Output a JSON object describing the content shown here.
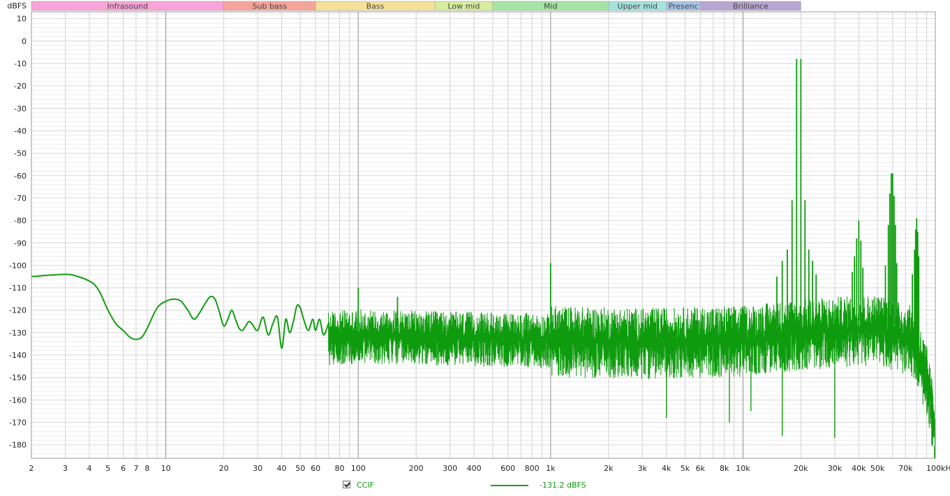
{
  "chart_data": {
    "type": "line",
    "ylabel": "dBFS",
    "x_unit": "Hz",
    "x_scale": "log",
    "xlim": [
      2,
      100000
    ],
    "ylim": [
      -186,
      13
    ],
    "grid": true,
    "y_ticks": [
      10,
      0,
      -10,
      -20,
      -30,
      -40,
      -50,
      -60,
      -70,
      -80,
      -90,
      -100,
      -110,
      -120,
      -130,
      -140,
      -150,
      -160,
      -170,
      -180
    ],
    "x_ticks": [
      {
        "value": 2,
        "label": "2"
      },
      {
        "value": 3,
        "label": "3"
      },
      {
        "value": 4,
        "label": "4"
      },
      {
        "value": 5,
        "label": "5"
      },
      {
        "value": 6,
        "label": "6"
      },
      {
        "value": 7,
        "label": "7"
      },
      {
        "value": 8,
        "label": "8"
      },
      {
        "value": 10,
        "label": "10"
      },
      {
        "value": 20,
        "label": "20"
      },
      {
        "value": 30,
        "label": "30"
      },
      {
        "value": 40,
        "label": "40"
      },
      {
        "value": 50,
        "label": "50"
      },
      {
        "value": 60,
        "label": "60"
      },
      {
        "value": 80,
        "label": "80"
      },
      {
        "value": 100,
        "label": "100"
      },
      {
        "value": 200,
        "label": "200"
      },
      {
        "value": 300,
        "label": "300"
      },
      {
        "value": 400,
        "label": "400"
      },
      {
        "value": 600,
        "label": "600"
      },
      {
        "value": 800,
        "label": "800"
      },
      {
        "value": 1000,
        "label": "1k"
      },
      {
        "value": 2000,
        "label": "2k"
      },
      {
        "value": 3000,
        "label": "3k"
      },
      {
        "value": 4000,
        "label": "4k"
      },
      {
        "value": 5000,
        "label": "5k"
      },
      {
        "value": 6000,
        "label": "6k"
      },
      {
        "value": 8000,
        "label": "8k"
      },
      {
        "value": 10000,
        "label": "10k"
      },
      {
        "value": 20000,
        "label": "20k"
      },
      {
        "value": 30000,
        "label": "30k"
      },
      {
        "value": 40000,
        "label": "40k"
      },
      {
        "value": 50000,
        "label": "50k"
      },
      {
        "value": 70000,
        "label": "70k"
      },
      {
        "value": 100000,
        "label": "100kHz"
      }
    ],
    "bands": [
      {
        "label": "Infrasound",
        "from": 2,
        "to": 20,
        "color": "#f7a4d8"
      },
      {
        "label": "Sub bass",
        "from": 20,
        "to": 60,
        "color": "#f6a49a"
      },
      {
        "label": "Bass",
        "from": 60,
        "to": 250,
        "color": "#f6e09a"
      },
      {
        "label": "Low mid",
        "from": 250,
        "to": 500,
        "color": "#d7ec9c"
      },
      {
        "label": "Mid",
        "from": 500,
        "to": 2000,
        "color": "#a6e4a6"
      },
      {
        "label": "Upper mid",
        "from": 2000,
        "to": 4000,
        "color": "#a4e4de"
      },
      {
        "label": "Presenc",
        "from": 4000,
        "to": 6000,
        "color": "#a6c4e8"
      },
      {
        "label": "Brilliance",
        "from": 6000,
        "to": 20000,
        "color": "#b8a6d2"
      }
    ],
    "series": [
      {
        "name": "CCIF",
        "color": "#0e9c0e",
        "readout": "-131.2 dBFS",
        "x": [
          2,
          3,
          3.5,
          4,
          4.3,
          4.6,
          5,
          5.5,
          6,
          6.5,
          7,
          7.5,
          8,
          9,
          10,
          11,
          12,
          13,
          14,
          15,
          16,
          17,
          18,
          19,
          20,
          21,
          22,
          23,
          24,
          25,
          26,
          27,
          28,
          30,
          32,
          34,
          36,
          38,
          40,
          42,
          44,
          46,
          48,
          50,
          52,
          55,
          58,
          60,
          63,
          66,
          70
        ],
        "values": [
          -105,
          -104,
          -105,
          -107,
          -109,
          -113,
          -120,
          -126,
          -129,
          -132,
          -133,
          -132,
          -128,
          -119,
          -116,
          -115,
          -116,
          -120,
          -124,
          -121,
          -117,
          -114,
          -115,
          -121,
          -127,
          -124,
          -120,
          -124,
          -128,
          -129,
          -127,
          -125,
          -126,
          -129,
          -123,
          -131,
          -126,
          -123,
          -137,
          -124,
          -130,
          -125,
          -118,
          -119,
          -124,
          -129,
          -124,
          -129,
          -124,
          -131,
          -126
        ]
      }
    ],
    "noise_floor": [
      {
        "x": 70,
        "y": -132
      },
      {
        "x": 100,
        "y": -131
      },
      {
        "x": 300,
        "y": -132
      },
      {
        "x": 1000,
        "y": -133
      },
      {
        "x": 3000,
        "y": -134
      },
      {
        "x": 10000,
        "y": -133
      },
      {
        "x": 20000,
        "y": -130
      },
      {
        "x": 50000,
        "y": -128
      },
      {
        "x": 75000,
        "y": -133
      },
      {
        "x": 90000,
        "y": -150
      },
      {
        "x": 100000,
        "y": -175
      }
    ],
    "peaks": [
      {
        "x": 100,
        "y": -110
      },
      {
        "x": 160,
        "y": -114
      },
      {
        "x": 1000,
        "y": -99
      },
      {
        "x": 15000,
        "y": -105
      },
      {
        "x": 16000,
        "y": -98
      },
      {
        "x": 17000,
        "y": -93
      },
      {
        "x": 18000,
        "y": -71
      },
      {
        "x": 19000,
        "y": -8
      },
      {
        "x": 20000,
        "y": -8
      },
      {
        "x": 21000,
        "y": -71
      },
      {
        "x": 22000,
        "y": -93
      },
      {
        "x": 23000,
        "y": -98
      },
      {
        "x": 24000,
        "y": -104
      },
      {
        "x": 37000,
        "y": -103
      },
      {
        "x": 38000,
        "y": -96
      },
      {
        "x": 39000,
        "y": -88
      },
      {
        "x": 40000,
        "y": -80
      },
      {
        "x": 41000,
        "y": -89
      },
      {
        "x": 42000,
        "y": -101
      },
      {
        "x": 55000,
        "y": -100
      },
      {
        "x": 57000,
        "y": -82
      },
      {
        "x": 58000,
        "y": -68
      },
      {
        "x": 59000,
        "y": -59
      },
      {
        "x": 60000,
        "y": -59
      },
      {
        "x": 61000,
        "y": -69
      },
      {
        "x": 62000,
        "y": -82
      },
      {
        "x": 63000,
        "y": -99
      },
      {
        "x": 76000,
        "y": -104
      },
      {
        "x": 78000,
        "y": -93
      },
      {
        "x": 79000,
        "y": -84
      },
      {
        "x": 80000,
        "y": -79
      },
      {
        "x": 81000,
        "y": -85
      },
      {
        "x": 82000,
        "y": -96
      }
    ],
    "dips": [
      {
        "x": 4000,
        "y": -168
      },
      {
        "x": 8500,
        "y": -170
      },
      {
        "x": 11000,
        "y": -165
      },
      {
        "x": 16000,
        "y": -176
      },
      {
        "x": 30000,
        "y": -177
      },
      {
        "x": 99000,
        "y": -190
      }
    ]
  }
}
